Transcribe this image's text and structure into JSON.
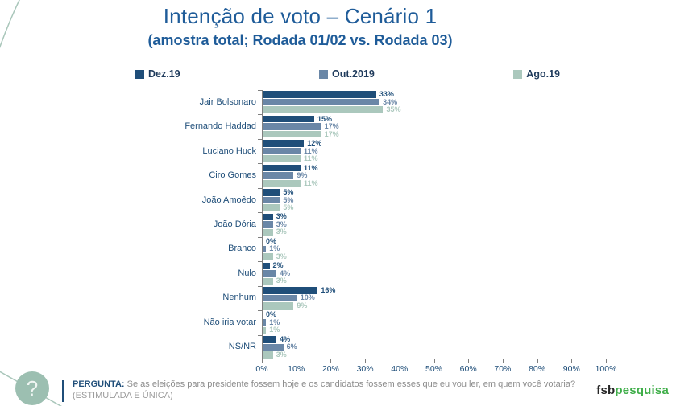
{
  "header": {
    "title": "Intenção de voto – Cenário 1",
    "subtitle": "(amostra total; Rodada 01/02 vs. Rodada 03)"
  },
  "chart_data": {
    "type": "bar",
    "orientation": "horizontal",
    "title": "Intenção de voto – Cenário 1",
    "categories": [
      "Jair Bolsonaro",
      "Fernando Haddad",
      "Luciano Huck",
      "Ciro Gomes",
      "João Amoêdo",
      "João Dória",
      "Branco",
      "Nulo",
      "Nenhum",
      "Não iria votar",
      "NS/NR"
    ],
    "series": [
      {
        "name": "Dez.19",
        "color": "#1F4E79",
        "values": [
          33,
          15,
          12,
          11,
          5,
          3,
          0,
          2,
          16,
          0,
          4
        ]
      },
      {
        "name": "Out.2019",
        "color": "#6A87A7",
        "values": [
          34,
          17,
          11,
          9,
          5,
          3,
          1,
          4,
          10,
          1,
          6
        ]
      },
      {
        "name": "Ago.19",
        "color": "#ABC8BD",
        "values": [
          35,
          17,
          11,
          11,
          5,
          3,
          3,
          3,
          9,
          1,
          3
        ]
      }
    ],
    "value_suffix": "%",
    "xlim": [
      0,
      100
    ],
    "x_ticks": [
      "0%",
      "10%",
      "20%",
      "30%",
      "40%",
      "50%",
      "60%",
      "70%",
      "80%",
      "90%",
      "100%"
    ],
    "legend_position": "top",
    "grid": false
  },
  "footer": {
    "question_label": "PERGUNTA:",
    "question_text": "Se as eleições para presidente fossem hoje e os candidatos fossem esses que eu vou ler, em quem você votaria?",
    "question_note": "(ESTIMULADA E ÚNICA)",
    "logo_primary": "fsb",
    "logo_secondary": "pesquisa"
  },
  "decor": {
    "question_mark": "?",
    "line_color": "#A9C6BA",
    "badge_color": "#9CBFB1"
  }
}
